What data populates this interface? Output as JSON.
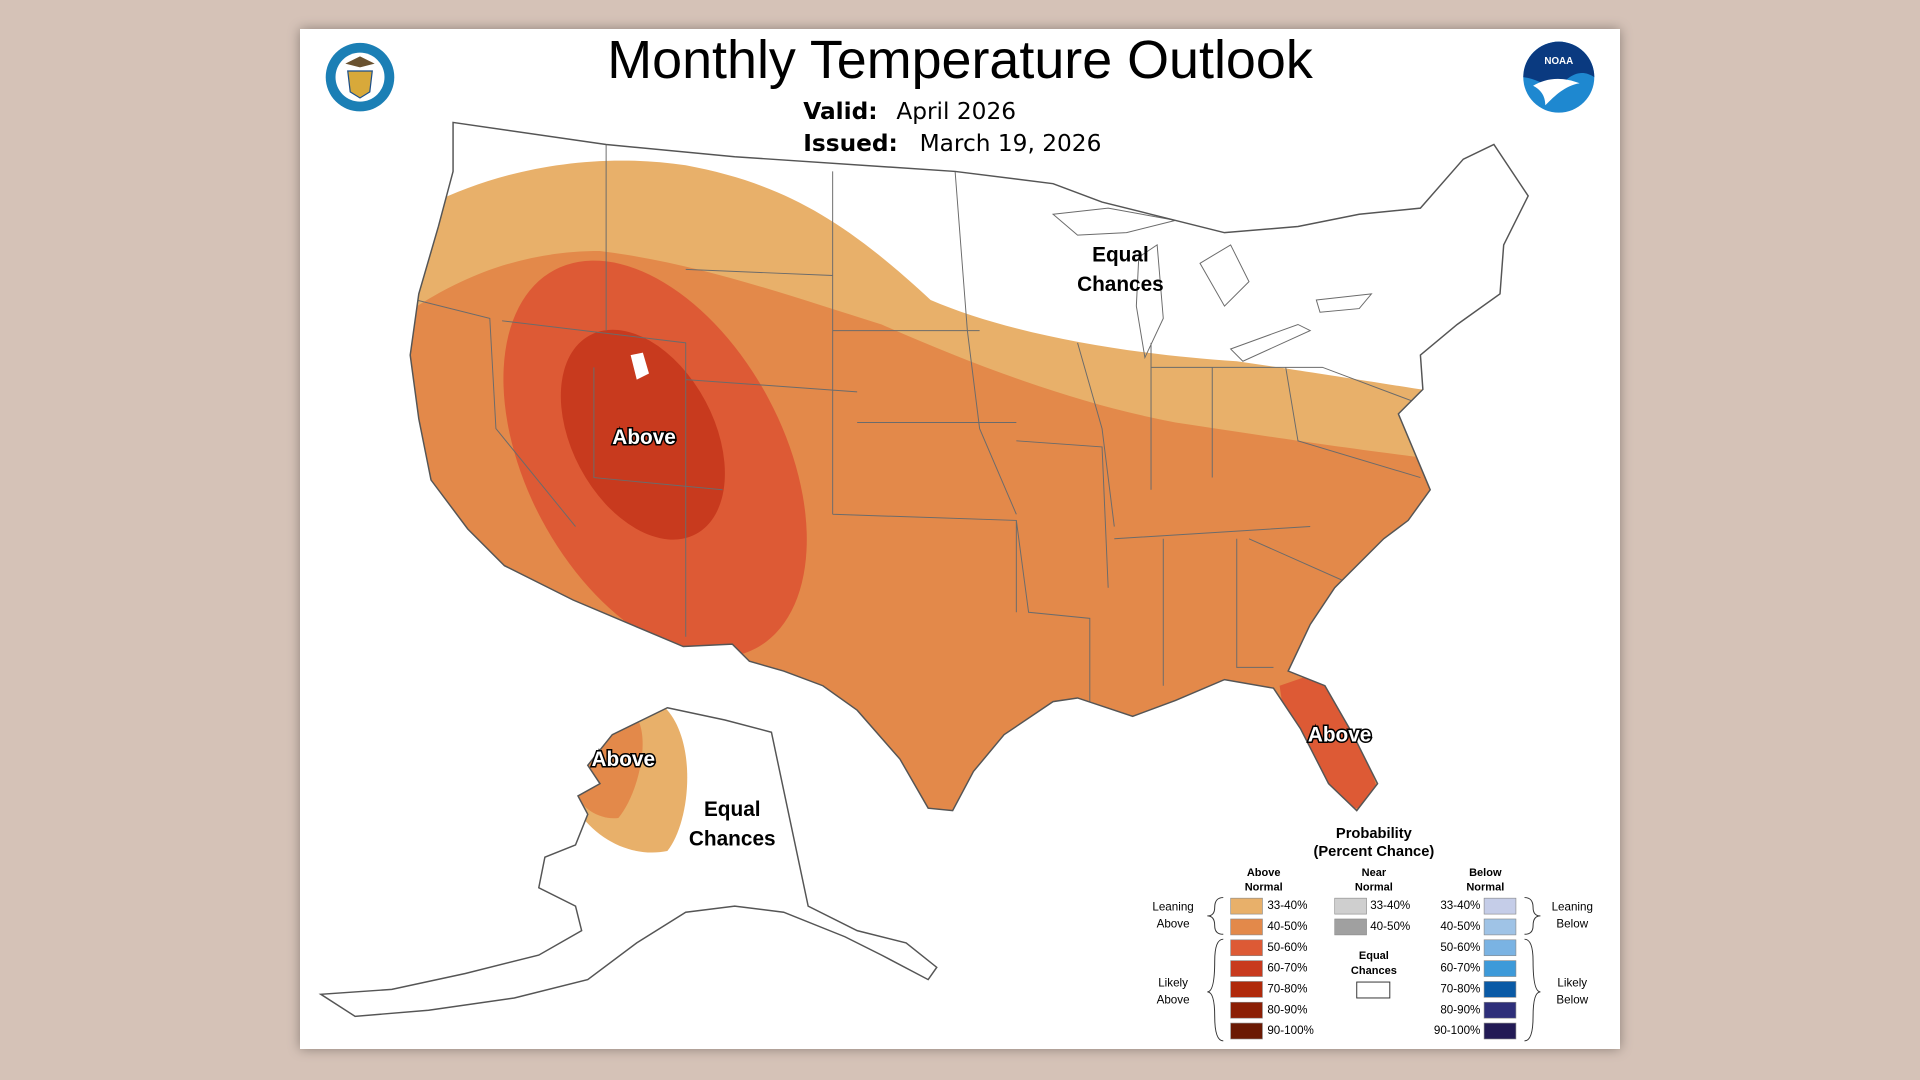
{
  "title": "Monthly Temperature Outlook",
  "valid": {
    "label": "Valid:",
    "value": "April 2026"
  },
  "issued": {
    "label": "Issued:",
    "value": "March 19, 2026"
  },
  "map_labels": [
    {
      "lines": [
        "Equal",
        "Chances"
      ]
    },
    {
      "lines": [
        "Above"
      ]
    },
    {
      "lines": [
        "Above"
      ]
    },
    {
      "lines": [
        "Above"
      ]
    },
    {
      "lines": [
        "Equal",
        "Chances"
      ]
    }
  ],
  "legend": {
    "title": [
      "Probability",
      "(Percent Chance)"
    ],
    "columns": [
      {
        "heading": [
          "Above",
          "Normal"
        ],
        "rows": [
          {
            "label": "33-40%",
            "color": "#e8b06a"
          },
          {
            "label": "40-50%",
            "color": "#e3894a"
          },
          {
            "label": "50-60%",
            "color": "#dd5a35"
          },
          {
            "label": "60-70%",
            "color": "#c83a1e"
          },
          {
            "label": "70-80%",
            "color": "#b02a0b"
          },
          {
            "label": "80-90%",
            "color": "#8c1f05"
          },
          {
            "label": "90-100%",
            "color": "#6b1a04"
          }
        ]
      },
      {
        "heading": [
          "Near",
          "Normal"
        ],
        "rows": [
          {
            "label": "33-40%",
            "color": "#cfcfcf"
          },
          {
            "label": "40-50%",
            "color": "#a0a0a0"
          }
        ]
      },
      {
        "heading": [
          "Below",
          "Normal"
        ],
        "rows": [
          {
            "label": "33-40%",
            "color": "#c5cde8"
          },
          {
            "label": "40-50%",
            "color": "#9fc3e6"
          },
          {
            "label": "50-60%",
            "color": "#7ab3e3"
          },
          {
            "label": "60-70%",
            "color": "#3d9ad9"
          },
          {
            "label": "70-80%",
            "color": "#0a5aa6"
          },
          {
            "label": "80-90%",
            "color": "#2e2f7a"
          },
          {
            "label": "90-100%",
            "color": "#221a55"
          }
        ]
      }
    ],
    "equal_chances": [
      "Equal",
      "Chances"
    ],
    "leaning_above": [
      "Leaning",
      "Above"
    ],
    "likely_above": [
      "Likely",
      "Above"
    ],
    "leaning_below": [
      "Leaning",
      "Below"
    ],
    "likely_below": [
      "Likely",
      "Below"
    ]
  }
}
